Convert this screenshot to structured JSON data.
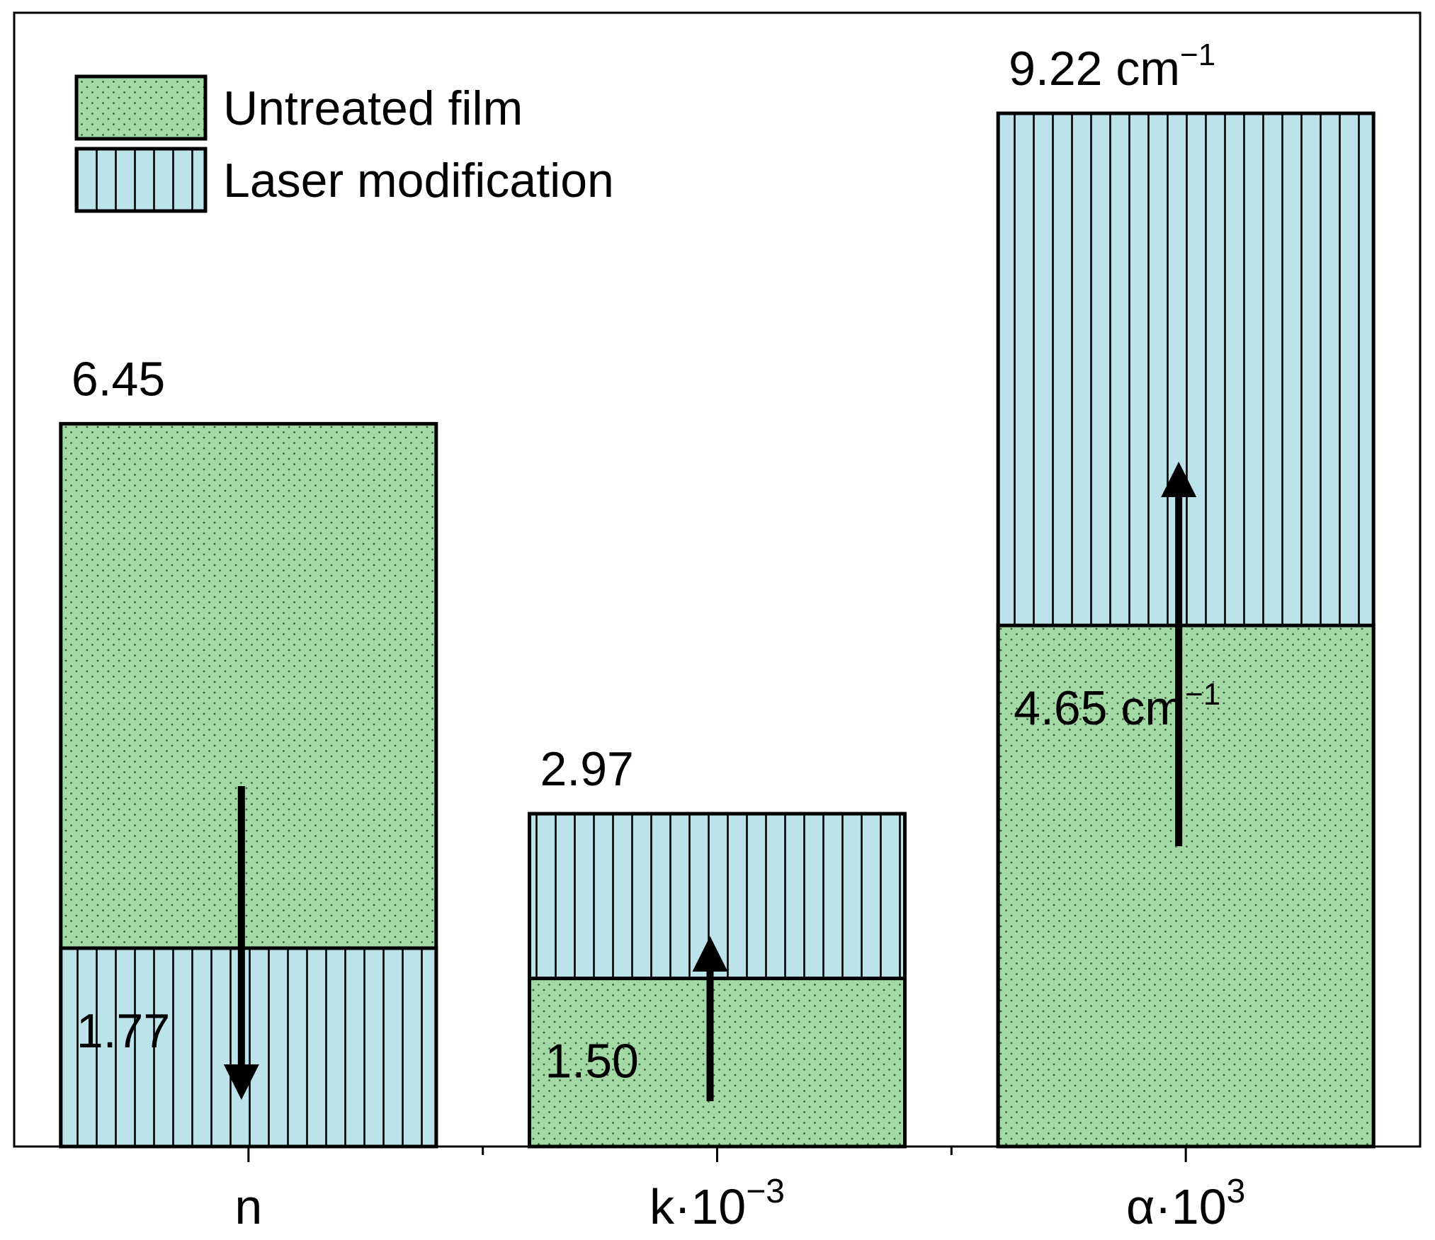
{
  "chart_data": {
    "type": "bar",
    "title": "",
    "xlabel": "",
    "ylabel": "",
    "ylim": [
      0,
      9.5
    ],
    "grid": false,
    "legend_position": "top-left",
    "categories": [
      {
        "base": "n",
        "exp": ""
      },
      {
        "base": "k·10",
        "exp": "−3"
      },
      {
        "base": "α·10",
        "exp": "3"
      }
    ],
    "series": [
      {
        "name": "Untreated film",
        "color": "#a3d9a5",
        "pattern": "dots",
        "values": [
          6.45,
          1.5,
          4.65
        ]
      },
      {
        "name": "Laser modification",
        "color": "#bde3ea",
        "pattern": "vertical-lines",
        "values": [
          1.77,
          2.97,
          9.22
        ]
      }
    ],
    "value_labels": [
      {
        "untreated": {
          "text": "6.45",
          "sup": ""
        },
        "laser": {
          "text": "1.77",
          "sup": ""
        }
      },
      {
        "untreated": {
          "text": "1.50",
          "sup": ""
        },
        "laser": {
          "text": "2.97",
          "sup": ""
        }
      },
      {
        "untreated": {
          "text": "4.65 cm",
          "sup": "−1"
        },
        "laser": {
          "text": "9.22 cm",
          "sup": "−1"
        }
      }
    ],
    "change_direction": [
      "down",
      "up",
      "up"
    ]
  }
}
